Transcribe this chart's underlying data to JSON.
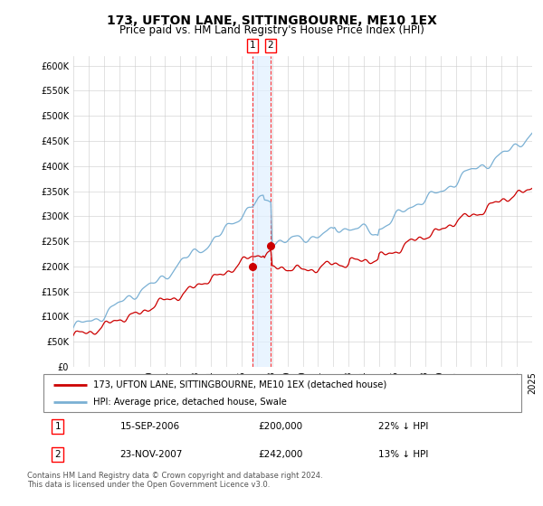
{
  "title": "173, UFTON LANE, SITTINGBOURNE, ME10 1EX",
  "subtitle": "Price paid vs. HM Land Registry's House Price Index (HPI)",
  "legend_line1": "173, UFTON LANE, SITTINGBOURNE, ME10 1EX (detached house)",
  "legend_line2": "HPI: Average price, detached house, Swale",
  "transaction1_date": "15-SEP-2006",
  "transaction1_price": "£200,000",
  "transaction1_hpi": "22% ↓ HPI",
  "transaction2_date": "23-NOV-2007",
  "transaction2_price": "£242,000",
  "transaction2_hpi": "13% ↓ HPI",
  "footer": "Contains HM Land Registry data © Crown copyright and database right 2024.\nThis data is licensed under the Open Government Licence v3.0.",
  "red_color": "#cc0000",
  "blue_color": "#7ab0d4",
  "ylim": [
    0,
    620000
  ],
  "yticks": [
    0,
    50000,
    100000,
    150000,
    200000,
    250000,
    300000,
    350000,
    400000,
    450000,
    500000,
    550000,
    600000
  ],
  "transaction1_year": 2006.71,
  "transaction2_year": 2007.9,
  "transaction1_price_val": 200000,
  "transaction2_price_val": 242000,
  "background_color": "#ffffff",
  "grid_color": "#cccccc"
}
